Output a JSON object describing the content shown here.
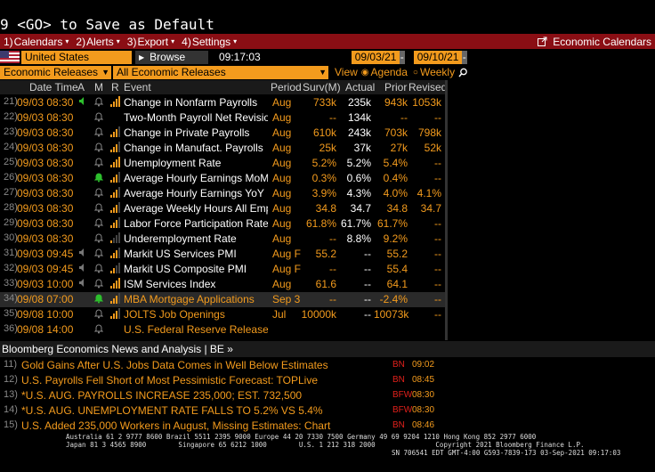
{
  "command_line": "9 <GO> to Save as Default",
  "menu": {
    "items": [
      {
        "num": "1)",
        "label": "Calendars"
      },
      {
        "num": "2)",
        "label": "Alerts"
      },
      {
        "num": "3)",
        "label": "Export"
      },
      {
        "num": "4)",
        "label": "Settings"
      }
    ],
    "right_label": "Economic Calendars"
  },
  "controls": {
    "country": "United States",
    "browse": "Browse",
    "time": "09:17:03",
    "start_date": "09/03/21",
    "end_date": "09/10/21",
    "category": "Economic Releases",
    "filter": "All Economic Releases",
    "view_label": "View",
    "view_agenda": "Agenda",
    "view_weekly": "Weekly"
  },
  "columns": {
    "date_time": "Date Time",
    "a": "A",
    "m": "M",
    "r": "R",
    "event": "Event",
    "period": "Period",
    "survey": "Surv(M)",
    "actual": "Actual",
    "prior": "Prior",
    "revised": "Revised"
  },
  "rows": [
    {
      "n": "21)",
      "dt": "09/03 08:30",
      "alert": "on",
      "bars": 4,
      "event": "Change in Nonfarm Payrolls",
      "period": "Aug",
      "survey": "733k",
      "actual": "235k",
      "prior": "943k",
      "revised": "1053k",
      "color": "white"
    },
    {
      "n": "22)",
      "dt": "09/03 08:30",
      "alert": "",
      "bars": 0,
      "event": "Two-Month Payroll Net Revision",
      "period": "Aug",
      "survey": "--",
      "actual": "134k",
      "prior": "--",
      "revised": "--",
      "color": "white"
    },
    {
      "n": "23)",
      "dt": "09/03 08:30",
      "alert": "",
      "bars": 3,
      "event": "Change in Private Payrolls",
      "period": "Aug",
      "survey": "610k",
      "actual": "243k",
      "prior": "703k",
      "revised": "798k",
      "color": "white"
    },
    {
      "n": "24)",
      "dt": "09/03 08:30",
      "alert": "",
      "bars": 3,
      "event": "Change in Manufact. Payrolls",
      "period": "Aug",
      "survey": "25k",
      "actual": "37k",
      "prior": "27k",
      "revised": "52k",
      "color": "white"
    },
    {
      "n": "25)",
      "dt": "09/03 08:30",
      "alert": "",
      "bars": 4,
      "event": "Unemployment Rate",
      "period": "Aug",
      "survey": "5.2%",
      "actual": "5.2%",
      "prior": "5.4%",
      "revised": "--",
      "color": "white"
    },
    {
      "n": "26)",
      "dt": "09/03 08:30",
      "alert": "",
      "bars": 3,
      "event": "Average Hourly Earnings MoM",
      "period": "Aug",
      "survey": "0.3%",
      "actual": "0.6%",
      "prior": "0.4%",
      "revised": "--",
      "color": "white",
      "bell": "green"
    },
    {
      "n": "27)",
      "dt": "09/03 08:30",
      "alert": "",
      "bars": 3,
      "event": "Average Hourly Earnings YoY",
      "period": "Aug",
      "survey": "3.9%",
      "actual": "4.3%",
      "prior": "4.0%",
      "revised": "4.1%",
      "color": "white"
    },
    {
      "n": "28)",
      "dt": "09/03 08:30",
      "alert": "",
      "bars": 3,
      "event": "Average Weekly Hours All Emp...",
      "period": "Aug",
      "survey": "34.8",
      "actual": "34.7",
      "prior": "34.8",
      "revised": "34.7",
      "color": "white"
    },
    {
      "n": "29)",
      "dt": "09/03 08:30",
      "alert": "",
      "bars": 3,
      "event": "Labor Force Participation Rate",
      "period": "Aug",
      "survey": "61.8%",
      "actual": "61.7%",
      "prior": "61.7%",
      "revised": "--",
      "color": "white"
    },
    {
      "n": "30)",
      "dt": "09/03 08:30",
      "alert": "",
      "bars": 1,
      "event": "Underemployment Rate",
      "period": "Aug",
      "survey": "--",
      "actual": "8.8%",
      "prior": "9.2%",
      "revised": "--",
      "color": "white"
    },
    {
      "n": "31)",
      "dt": "09/03 09:45",
      "alert": "mute",
      "bars": 3,
      "event": "Markit US Services PMI",
      "period": "Aug F",
      "survey": "55.2",
      "actual": "--",
      "prior": "55.2",
      "revised": "--",
      "color": "white"
    },
    {
      "n": "32)",
      "dt": "09/03 09:45",
      "alert": "mute",
      "bars": 2,
      "event": "Markit US Composite PMI",
      "period": "Aug F",
      "survey": "--",
      "actual": "--",
      "prior": "55.4",
      "revised": "--",
      "color": "white"
    },
    {
      "n": "33)",
      "dt": "09/03 10:00",
      "alert": "mute",
      "bars": 4,
      "event": "ISM Services Index",
      "period": "Aug",
      "survey": "61.6",
      "actual": "--",
      "prior": "64.1",
      "revised": "--",
      "color": "white"
    },
    {
      "n": "34)",
      "dt": "09/08 07:00",
      "alert": "",
      "bars": 3,
      "event": "MBA Mortgage Applications",
      "period": "Sep 3",
      "survey": "--",
      "actual": "--",
      "prior": "-2.4%",
      "revised": "--",
      "color": "orange",
      "bell": "green",
      "hl": true
    },
    {
      "n": "35)",
      "dt": "09/08 10:00",
      "alert": "",
      "bars": 3,
      "event": "JOLTS Job Openings",
      "period": "Jul",
      "survey": "10000k",
      "actual": "--",
      "prior": "10073k",
      "revised": "--",
      "color": "orange"
    },
    {
      "n": "36)",
      "dt": "09/08 14:00",
      "alert": "",
      "bars": 0,
      "event": "U.S. Federal Reserve Releases Beige Book",
      "period": "",
      "survey": "",
      "actual": "",
      "prior": "",
      "revised": "",
      "color": "orange"
    }
  ],
  "news": {
    "header": "Bloomberg Economics News and Analysis | BE »",
    "items": [
      {
        "n": "11)",
        "title": "Gold Gains After U.S. Jobs Data Comes in Well Below Estimates",
        "source": "BN",
        "time": "09:02"
      },
      {
        "n": "12)",
        "title": "U.S. Payrolls Fell Short of Most Pessimistic Forecast: TOPLive",
        "source": "BN",
        "time": "08:45"
      },
      {
        "n": "13)",
        "title": "*U.S. AUG. PAYROLLS INCREASE 235,000; EST. 732,500",
        "source": "BFW",
        "time": "08:30"
      },
      {
        "n": "14)",
        "title": "*U.S. AUG. UNEMPLOYMENT RATE FALLS TO 5.2% VS 5.4%",
        "source": "BFW",
        "time": "08:30"
      },
      {
        "n": "15)",
        "title": "U.S. Added 235,000 Workers in August, Missing Estimates: Chart",
        "source": "BN",
        "time": "08:46"
      }
    ]
  },
  "footer": {
    "line1": "Australia 61 2 9777 8600 Brazil 5511 2395 9000 Europe 44 20 7330 7500 Germany 49 69 9204 1210 Hong Kong 852 2977 6000",
    "line2": "Japan 81 3 4565 8900        Singapore 65 6212 1000        U.S. 1 212 318 2000               Copyright 2021 Bloomberg Finance L.P.",
    "line3": "SN 706541 EDT  GMT-4:00 G593-7839-173 03-Sep-2021 09:17:03"
  },
  "colors": {
    "accent": "#f39b1d",
    "menu": "#8a0e14",
    "green": "#2dbf2d"
  }
}
